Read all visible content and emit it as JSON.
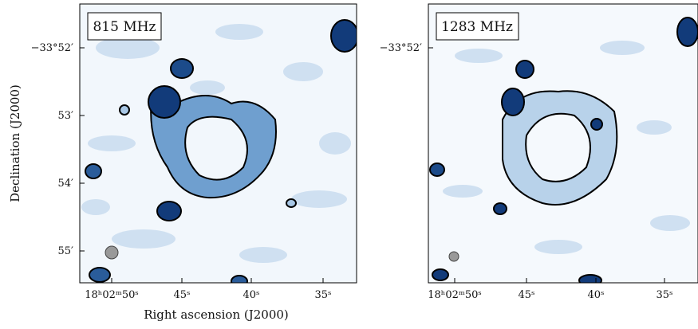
{
  "y_axis_label": "Declination (J2000)",
  "x_axis_label": "Right ascension (J2000)",
  "panels": [
    {
      "label": "815 MHz",
      "y_ticks": [
        "−33°52′",
        "53′",
        "54′",
        "55′"
      ],
      "x_ticks": [
        "18ʰ02ᵐ50ˢ",
        "45ˢ",
        "40ˢ",
        "35ˢ"
      ]
    },
    {
      "label": "1283 MHz",
      "y_ticks": [
        "−33°52′"
      ],
      "x_ticks": [
        "18ʰ02ᵐ50ˢ",
        "45ˢ",
        "40ˢ",
        "35ˢ"
      ]
    }
  ]
}
